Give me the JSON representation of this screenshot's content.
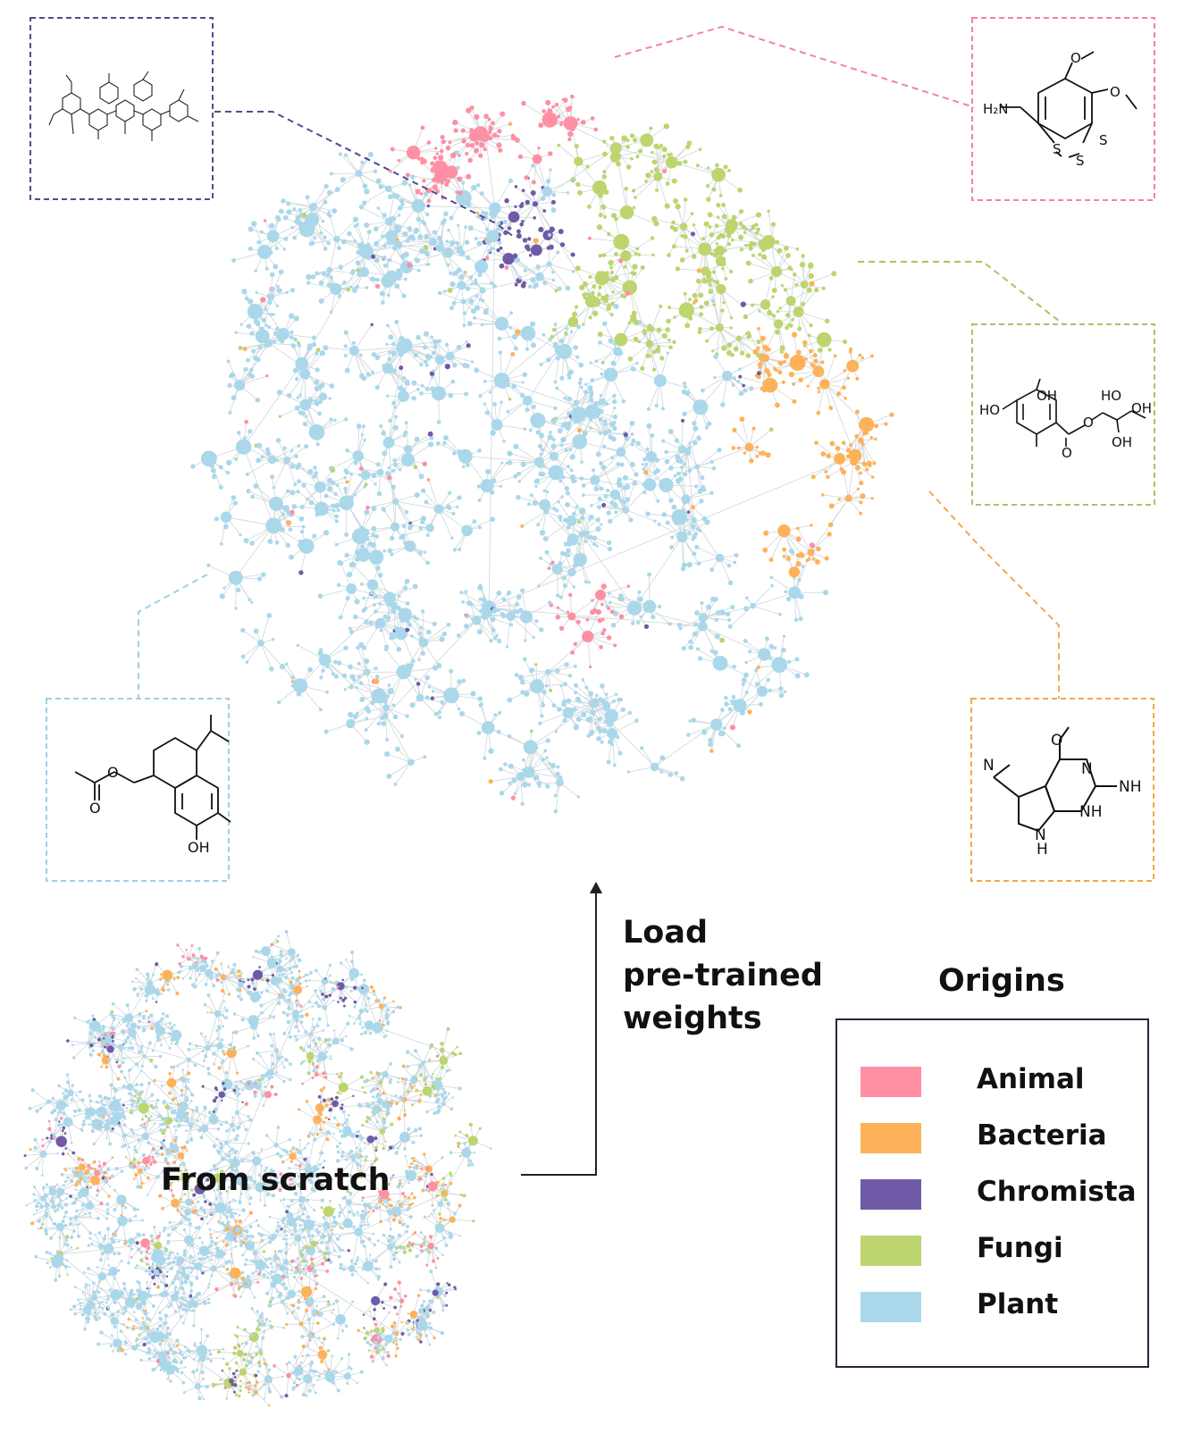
{
  "load_label": [
    "Load",
    "pre-trained",
    "weights"
  ],
  "scratch_label": "From scratch",
  "legend": {
    "title": "Origins",
    "items": [
      {
        "label": "Animal",
        "color": "#ff8fa3"
      },
      {
        "label": "Bacteria",
        "color": "#fdb25a"
      },
      {
        "label": "Chromista",
        "color": "#6f5aa8"
      },
      {
        "label": "Fungi",
        "color": "#bcd56f"
      },
      {
        "label": "Plant",
        "color": "#aad8ea"
      }
    ]
  },
  "molecules": {
    "animal": {
      "atoms": [
        "H₂N",
        "O",
        "O",
        "S",
        "S",
        "S"
      ],
      "frame_color": "#f2849a"
    },
    "fungi": {
      "atoms": [
        "HO",
        "OH",
        "O",
        "O",
        "HO",
        "OH",
        "OH"
      ],
      "frame_color": "#a8c364"
    },
    "bacteria": {
      "atoms": [
        "N",
        "O",
        "N",
        "NH",
        "NH",
        "N",
        "H"
      ],
      "frame_color": "#f3a84c"
    },
    "plant": {
      "atoms": [
        "O",
        "O",
        "OH"
      ],
      "frame_color": "#9fd0e4"
    },
    "chromista": {
      "frame_color": "#55498f"
    }
  }
}
